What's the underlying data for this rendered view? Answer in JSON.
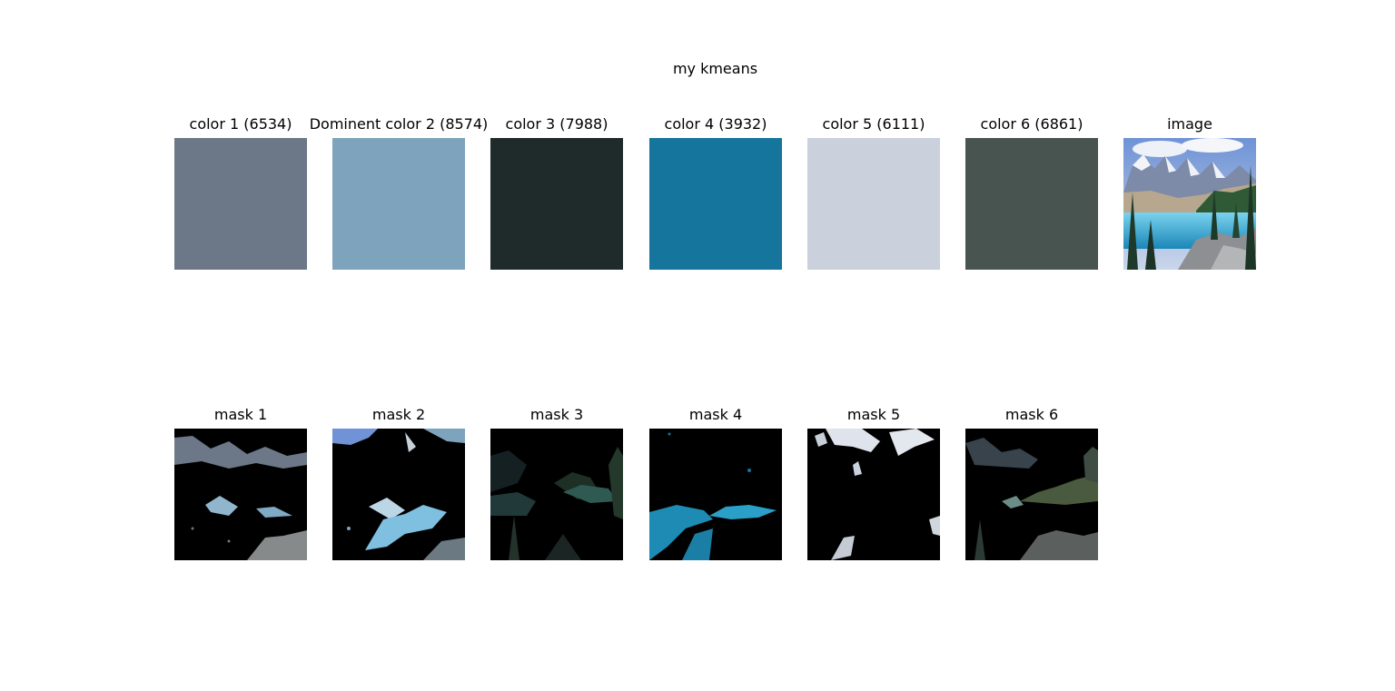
{
  "figure": {
    "suptitle": "my kmeans"
  },
  "chart_data": {
    "type": "image-grid",
    "title": "my kmeans",
    "colors": [
      {
        "label": "color 1 (6534)",
        "hex": "#6c7887",
        "count": 6534
      },
      {
        "label": "Dominent color 2 (8574)",
        "hex": "#7ea4bd",
        "count": 8574
      },
      {
        "label": "color 3 (7988)",
        "hex": "#1f2b2a",
        "count": 7988
      },
      {
        "label": "color 4 (3932)",
        "hex": "#15759c",
        "count": 3932
      },
      {
        "label": "color 5 (6111)",
        "hex": "#cbd1dc",
        "count": 6111
      },
      {
        "label": "color 6 (6861)",
        "hex": "#47544f",
        "count": 6861
      }
    ],
    "image_label": "image",
    "masks": [
      {
        "label": "mask 1"
      },
      {
        "label": "mask 2"
      },
      {
        "label": "mask 3"
      },
      {
        "label": "mask 4"
      },
      {
        "label": "mask 5"
      },
      {
        "label": "mask 6"
      }
    ]
  }
}
